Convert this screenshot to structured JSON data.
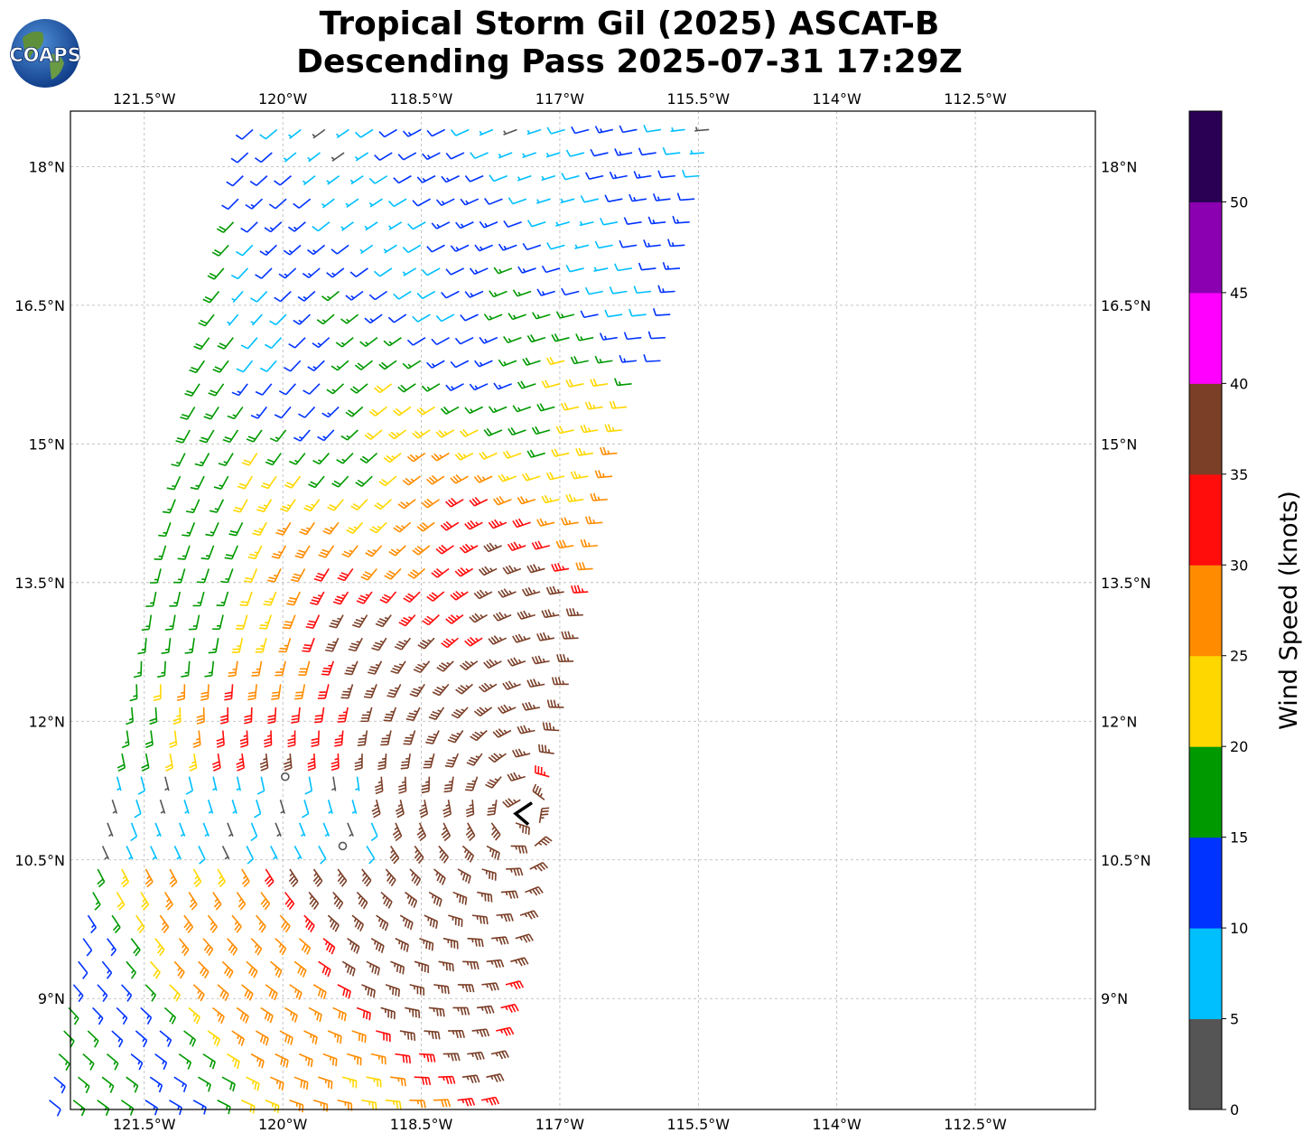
{
  "title": {
    "line1": "Tropical Storm Gil (2025) ASCAT-B",
    "line2": "Descending Pass 2025-07-31 17:29Z"
  },
  "logo": {
    "text": "COAPS",
    "icon": "globe-icon"
  },
  "map": {
    "lon_labels": [
      "121.5°W",
      "120°W",
      "118.5°W",
      "117°W",
      "115.5°W",
      "114°W",
      "112.5°W"
    ],
    "lon_values": [
      -121.5,
      -120,
      -118.5,
      -117,
      -115.5,
      -114,
      -112.5
    ],
    "lat_labels": [
      "18°N",
      "16.5°N",
      "15°N",
      "13.5°N",
      "12°N",
      "10.5°N",
      "9°N"
    ],
    "lat_values": [
      18,
      16.5,
      15,
      13.5,
      12,
      10.5,
      9
    ],
    "extent": {
      "lon_min": -122.3,
      "lon_max": -111.2,
      "lat_min": 7.8,
      "lat_max": 18.6
    },
    "gridlines": "on",
    "storm_center": {
      "lon": -117.4,
      "lat": 11.0,
      "marker": "storm-center-icon"
    }
  },
  "colorbar": {
    "label": "Wind Speed (knots)",
    "ticks": [
      "0",
      "5",
      "10",
      "15",
      "20",
      "25",
      "30",
      "35",
      "40",
      "45",
      "50"
    ],
    "bins": [
      {
        "min": 0,
        "max": 5,
        "color": "#555555"
      },
      {
        "min": 5,
        "max": 10,
        "color": "#00bfff"
      },
      {
        "min": 10,
        "max": 15,
        "color": "#0033ff"
      },
      {
        "min": 15,
        "max": 20,
        "color": "#009900"
      },
      {
        "min": 20,
        "max": 25,
        "color": "#ffd700"
      },
      {
        "min": 25,
        "max": 30,
        "color": "#ff8c00"
      },
      {
        "min": 30,
        "max": 35,
        "color": "#ff0d0d"
      },
      {
        "min": 35,
        "max": 40,
        "color": "#7b3f28"
      },
      {
        "min": 40,
        "max": 45,
        "color": "#ff00ff"
      },
      {
        "min": 45,
        "max": 50,
        "color": "#8b00b0"
      },
      {
        "min": 50,
        "max": 55,
        "color": "#2a0055"
      }
    ]
  }
}
